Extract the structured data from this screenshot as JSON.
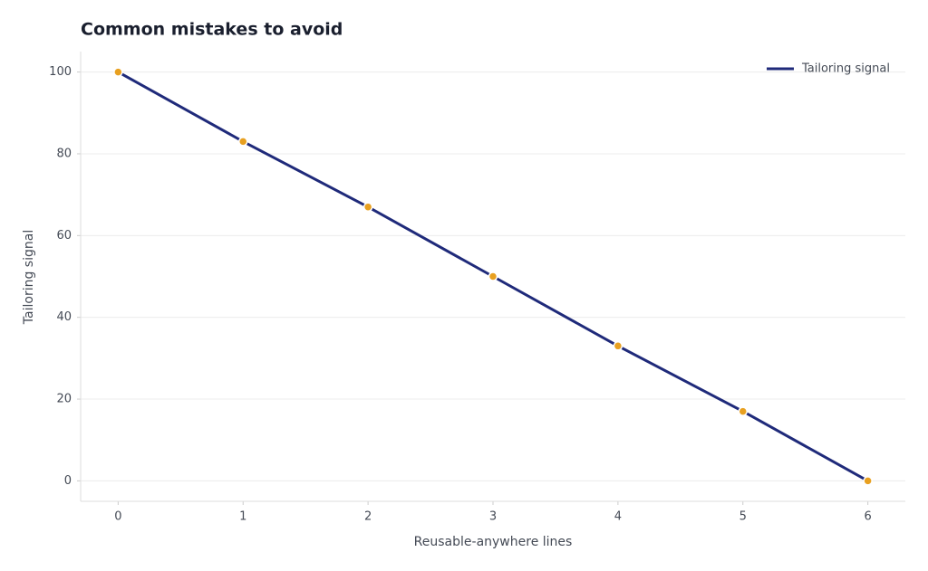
{
  "chart_data": {
    "type": "line",
    "title": "Common mistakes to avoid",
    "x_label": "Reusable-anywhere lines",
    "y_label": "Tailoring signal",
    "x": [
      0,
      1,
      2,
      3,
      4,
      5,
      6
    ],
    "series": [
      {
        "name": "Tailoring signal",
        "color": "#1f2a7a",
        "marker_color": "#e8a020",
        "values": [
          100,
          83,
          67,
          50,
          33,
          17,
          0
        ]
      }
    ],
    "xlim": [
      -0.3,
      6.3
    ],
    "ylim": [
      -5,
      105
    ],
    "xticks": [
      0,
      1,
      2,
      3,
      4,
      5,
      6
    ],
    "yticks": [
      0,
      20,
      40,
      60,
      80,
      100
    ],
    "grid": true,
    "legend": "upper right"
  }
}
